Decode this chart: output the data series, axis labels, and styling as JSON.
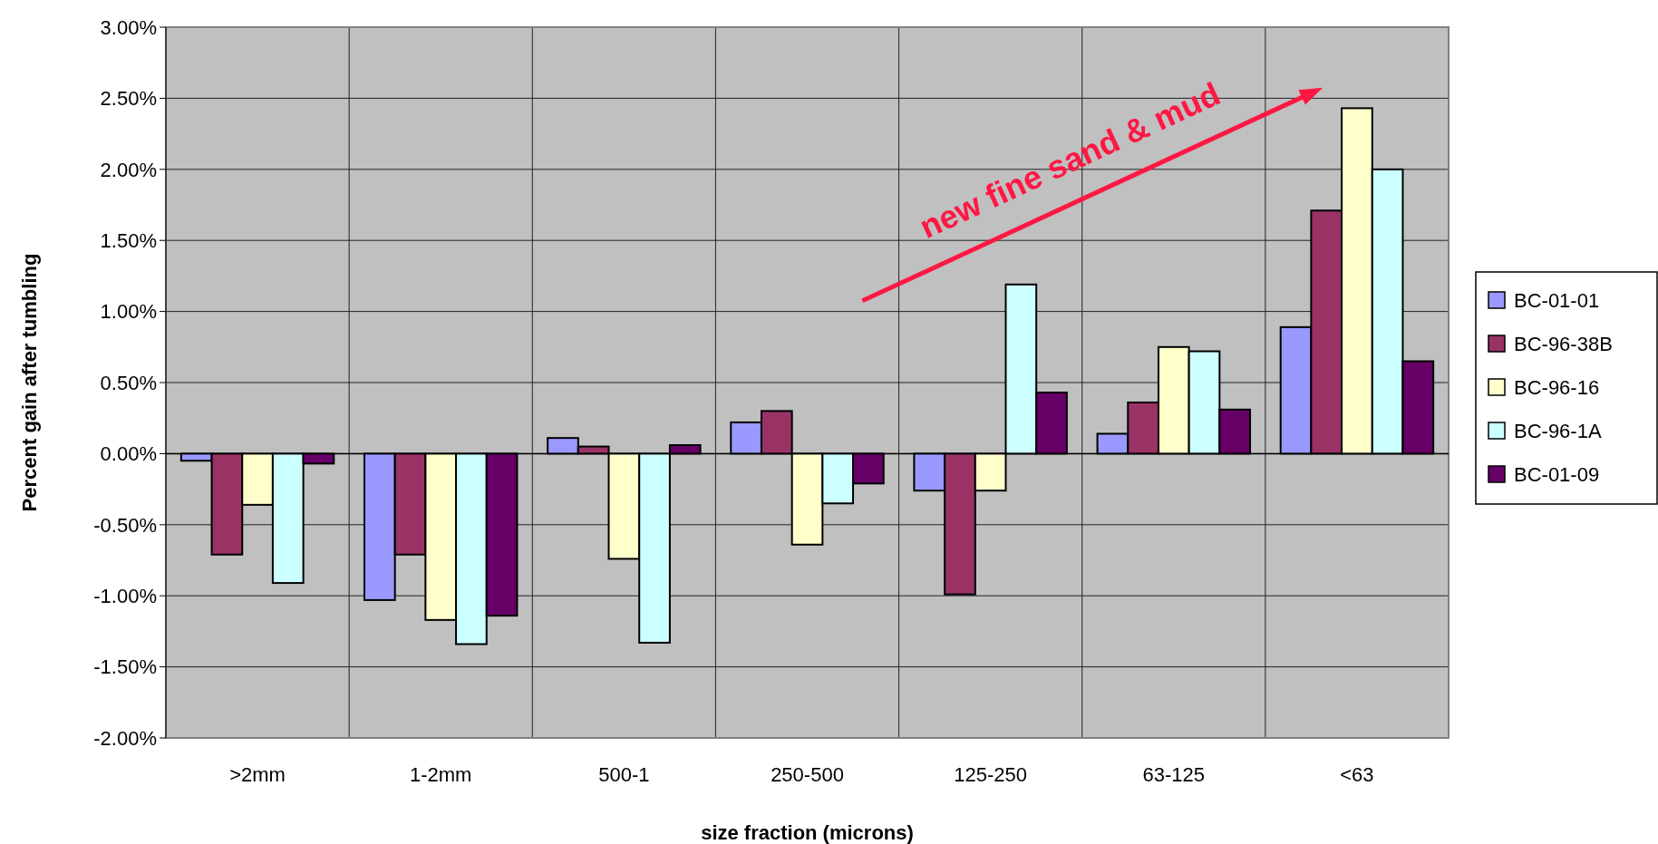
{
  "chart_data": {
    "type": "bar",
    "xlabel": "size fraction (microns)",
    "ylabel": "Percent gain after tumbling",
    "categories": [
      ">2mm",
      "1-2mm",
      "500-1",
      "250-500",
      "125-250",
      "63-125",
      "<63"
    ],
    "series": [
      {
        "name": "BC-01-01",
        "color": "#9999ff",
        "values": [
          -0.05,
          -1.03,
          0.11,
          0.22,
          -0.26,
          0.14,
          0.89
        ]
      },
      {
        "name": "BC-96-38B",
        "color": "#993366",
        "values": [
          -0.71,
          -0.71,
          0.05,
          0.3,
          -0.99,
          0.36,
          1.71
        ]
      },
      {
        "name": "BC-96-16",
        "color": "#ffffcc",
        "values": [
          -0.36,
          -1.17,
          -0.74,
          -0.64,
          -0.26,
          0.75,
          2.43
        ]
      },
      {
        "name": "BC-96-1A",
        "color": "#ccffff",
        "values": [
          -0.91,
          -1.34,
          -1.33,
          -0.35,
          1.19,
          0.72,
          2.0
        ]
      },
      {
        "name": "BC-01-09",
        "color": "#660066",
        "values": [
          -0.07,
          -1.14,
          0.06,
          -0.21,
          0.43,
          0.31,
          0.65
        ]
      }
    ],
    "ylim": [
      -2,
      3
    ],
    "yticks": [
      {
        "value": -2,
        "label": "-2.00%"
      },
      {
        "value": -1.5,
        "label": "-1.50%"
      },
      {
        "value": -1,
        "label": "-1.00%"
      },
      {
        "value": -0.5,
        "label": "-0.50%"
      },
      {
        "value": 0,
        "label": "0.00%"
      },
      {
        "value": 0.5,
        "label": "0.50%"
      },
      {
        "value": 1,
        "label": "1.00%"
      },
      {
        "value": 1.5,
        "label": "1.50%"
      },
      {
        "value": 2,
        "label": "2.00%"
      },
      {
        "value": 2.5,
        "label": "2.50%"
      },
      {
        "value": 3,
        "label": "3.00%"
      }
    ],
    "grid": true,
    "legend": "right",
    "annotations": [
      "new fine sand & mud"
    ]
  }
}
